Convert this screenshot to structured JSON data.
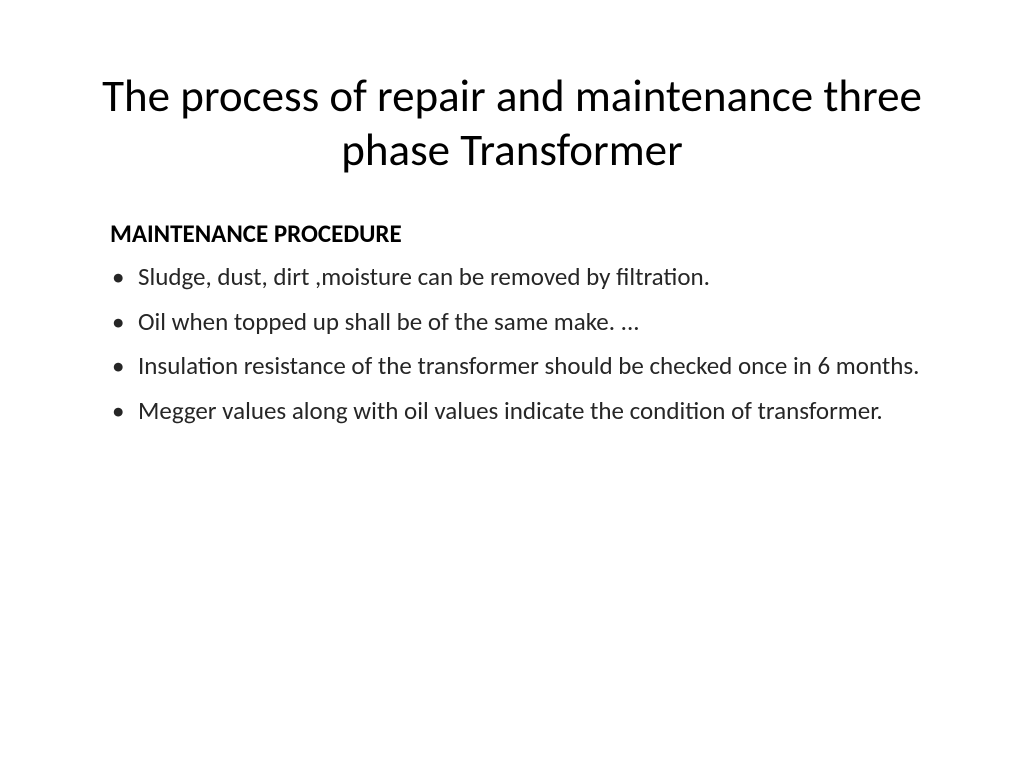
{
  "slide": {
    "title": "The process of repair and maintenance three phase Transformer",
    "title_fontsize": 45,
    "title_color": "#000000",
    "subheading": "MAINTENANCE PROCEDURE",
    "subheading_fontsize": 25,
    "subheading_fontweight": 700,
    "bullets": [
      "Sludge, dust, dirt ,moisture can be removed by filtration.",
      "Oil when topped up shall be of the same make. ...",
      "Insulation resistance of the transformer should be checked once in 6 months.",
      "Megger values along with oil values indicate the condition of transformer."
    ],
    "bullet_fontsize": 25,
    "bullet_color": "#262626",
    "background_color": "#ffffff"
  }
}
